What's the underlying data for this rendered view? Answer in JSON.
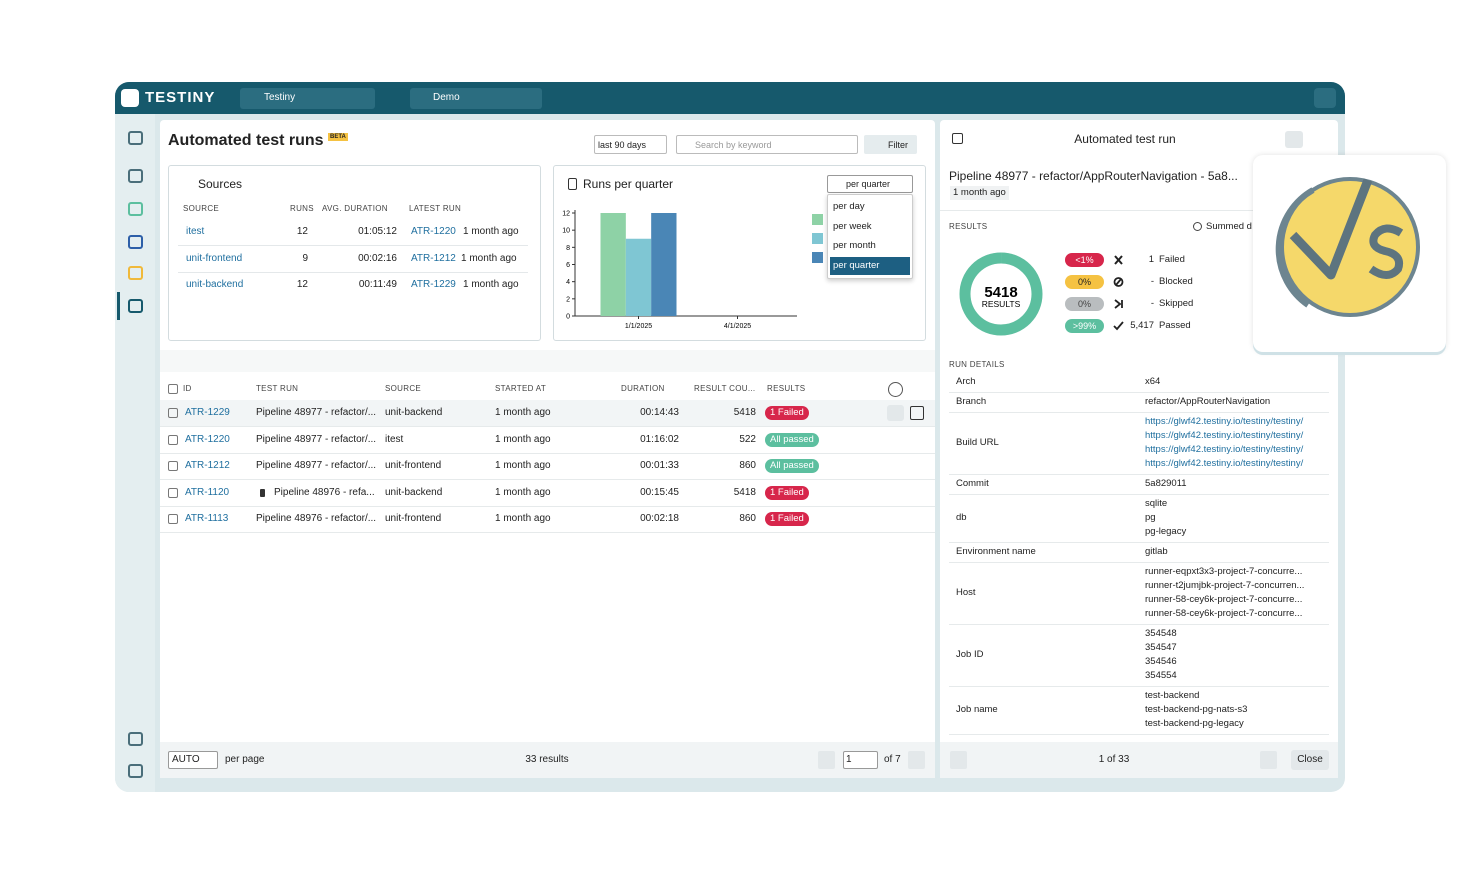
{
  "header": {
    "brand": "TESTINY",
    "project": "Testiny",
    "workspace": "Demo"
  },
  "main": {
    "title": "Automated test runs",
    "badge": "BETA",
    "range": "last 90 days",
    "search": "Search by keyword",
    "filter": "Filter"
  },
  "sources": {
    "title": "Sources",
    "columns": [
      "SOURCE",
      "RUNS",
      "AVG. DURATION",
      "LATEST RUN"
    ],
    "rows": [
      [
        "itest",
        12,
        "01:05:12",
        "ATR-1220",
        "1 month ago"
      ],
      [
        "unit-frontend",
        9,
        "00:02:16",
        "ATR-1212",
        "1 month ago"
      ],
      [
        "unit-backend",
        12,
        "00:11:49",
        "ATR-1229",
        "1 month ago"
      ]
    ]
  },
  "chart_data": {
    "type": "bar",
    "title": "Runs per quarter",
    "selector": "per quarter",
    "options": [
      "per day",
      "per week",
      "per month",
      "per quarter"
    ],
    "categories": [
      "1/1/2025",
      "4/1/2025"
    ],
    "series": [
      {
        "color": "#8ed2a6",
        "values": [
          12,
          null
        ]
      },
      {
        "color": "#7fc6d3",
        "values": [
          9,
          null
        ]
      },
      {
        "color": "#4a86b6",
        "values": [
          12,
          null
        ]
      }
    ],
    "ylim": [
      0,
      12
    ],
    "yticks": [
      0,
      2,
      4,
      6,
      8,
      10,
      12
    ]
  },
  "runs": {
    "columns": [
      "ID",
      "TEST RUN",
      "SOURCE",
      "STARTED AT",
      "DURATION",
      "RESULT COU...",
      "RESULTS"
    ],
    "rows": [
      {
        "id": "ATR-1229",
        "name": "Pipeline 48977 - refactor/...",
        "source": "unit-backend",
        "started": "1 month ago",
        "duration": "00:14:43",
        "count": 5418,
        "result": "1 Failed",
        "result_color": "#d7264b"
      },
      {
        "id": "ATR-1220",
        "name": "Pipeline 48977 - refactor/...",
        "source": "itest",
        "started": "1 month ago",
        "duration": "01:16:02",
        "count": 522,
        "result": "All passed",
        "result_color": "#5cbf9f"
      },
      {
        "id": "ATR-1212",
        "name": "Pipeline 48977 - refactor/...",
        "source": "unit-frontend",
        "started": "1 month ago",
        "duration": "00:01:33",
        "count": 860,
        "result": "All passed",
        "result_color": "#5cbf9f"
      },
      {
        "id": "ATR-1120",
        "name": "Pipeline 48976 - refa...",
        "source": "unit-backend",
        "started": "1 month ago",
        "duration": "00:15:45",
        "count": 5418,
        "result": "1 Failed",
        "result_color": "#d7264b",
        "pinned": true
      },
      {
        "id": "ATR-1113",
        "name": "Pipeline 48976 - refactor/...",
        "source": "unit-frontend",
        "started": "1 month ago",
        "duration": "00:02:18",
        "count": 860,
        "result": "1 Failed",
        "result_color": "#d7264b"
      }
    ],
    "per_page": "AUTO",
    "per_page_label": "per page",
    "total": "33 results",
    "page": "1",
    "pages": "of 7"
  },
  "detail": {
    "title": "Automated test run",
    "heading": "Pipeline 48977 - refactor/AppRouterNavigation - 5a8...",
    "subtitle": "1 month ago",
    "results_label": "RESULTS",
    "summed": "Summed d",
    "donut": {
      "total": 5418,
      "total_label": "RESULTS",
      "names": [
        "Failed",
        "Blocked",
        "Skipped",
        "Passed"
      ],
      "values": [
        1,
        0,
        0,
        5417
      ],
      "value_labels": [
        "1",
        "-",
        "-",
        "5,417"
      ],
      "percent_labels": [
        "<1%",
        "0%",
        "0%",
        ">99%"
      ],
      "colors": [
        "#d7264b",
        "#f5c242",
        "#b9bdbf",
        "#5cbf9f"
      ]
    },
    "details_label": "RUN DETAILS",
    "details": [
      {
        "label": "Arch",
        "values": [
          "x64"
        ]
      },
      {
        "label": "Branch",
        "values": [
          "refactor/AppRouterNavigation"
        ]
      },
      {
        "label": "Build URL",
        "values": [
          "https://glwf42.testiny.io/testiny/testiny/",
          "https://glwf42.testiny.io/testiny/testiny/",
          "https://glwf42.testiny.io/testiny/testiny/",
          "https://glwf42.testiny.io/testiny/testiny/"
        ],
        "link": true
      },
      {
        "label": "Commit",
        "values": [
          "5a829011"
        ]
      },
      {
        "label": "db",
        "values": [
          "sqlite",
          "pg",
          "pg-legacy"
        ]
      },
      {
        "label": "Environment name",
        "values": [
          "gitlab"
        ]
      },
      {
        "label": "Host",
        "values": [
          "runner-eqpxt3x3-project-7-concurre...",
          "runner-t2jumjbk-project-7-concurren...",
          "runner-58-cey6k-project-7-concurre...",
          "runner-58-cey6k-project-7-concurre..."
        ]
      },
      {
        "label": "Job ID",
        "values": [
          "354548",
          "354547",
          "354546",
          "354554"
        ]
      },
      {
        "label": "Job name",
        "values": [
          "test-backend",
          "test-backend-pg-nats-s3",
          "test-backend-pg-legacy"
        ]
      }
    ],
    "position": "1 of 33",
    "close": "Close"
  }
}
